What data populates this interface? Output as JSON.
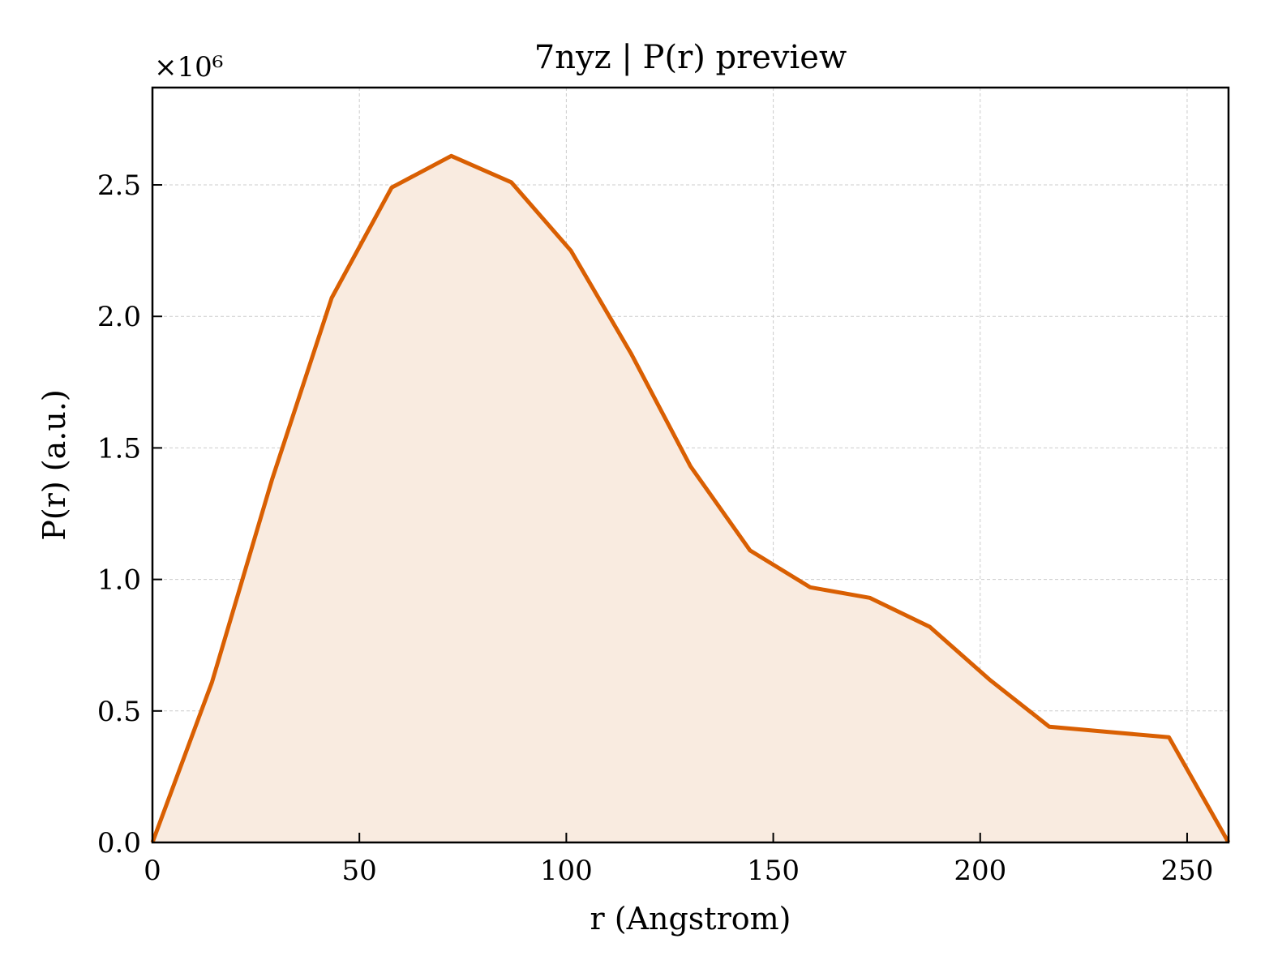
{
  "chart_data": {
    "type": "area",
    "title": "7nyz | P(r) preview",
    "xlabel": "r (Angstrom)",
    "ylabel": "P(r) (a.u.)",
    "y_offset_label": "×10⁶",
    "xlim": [
      0,
      260
    ],
    "ylim": [
      0,
      2.87
    ],
    "y_scale": 1000000,
    "grid": true,
    "x_ticks": [
      0,
      50,
      100,
      150,
      200,
      250
    ],
    "y_ticks": [
      0.0,
      0.5,
      1.0,
      1.5,
      2.0,
      2.5
    ],
    "x_tick_labels": [
      "0",
      "50",
      "100",
      "150",
      "200",
      "250"
    ],
    "y_tick_labels": [
      "0.0",
      "0.5",
      "1.0",
      "1.5",
      "2.0",
      "2.5"
    ],
    "series": [
      {
        "x": [
          0,
          14.4,
          28.9,
          43.3,
          57.8,
          72.2,
          86.7,
          101.1,
          115.6,
          130.0,
          144.4,
          158.9,
          173.3,
          187.8,
          202.2,
          216.7,
          231.1,
          245.6,
          260.0
        ],
        "y": [
          0.0,
          0.61,
          1.38,
          2.07,
          2.49,
          2.61,
          2.51,
          2.25,
          1.86,
          1.43,
          1.11,
          0.97,
          0.93,
          0.82,
          0.62,
          0.44,
          0.42,
          0.4,
          0.0
        ]
      }
    ],
    "colors": {
      "line": "#d95f02",
      "fill": "#f9ebe0"
    }
  }
}
